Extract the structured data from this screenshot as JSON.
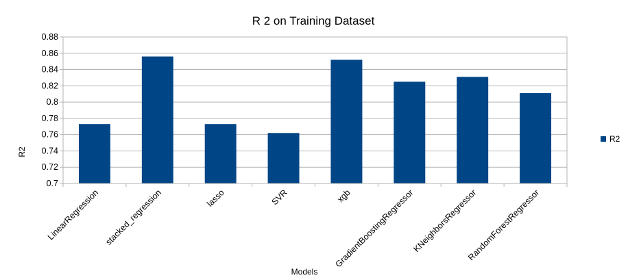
{
  "chart_data": {
    "type": "bar",
    "title": "R 2 on Training Dataset",
    "xlabel": "Models",
    "ylabel": "R2",
    "ylim": [
      0.7,
      0.88
    ],
    "ytick_step": 0.02,
    "ytick_labels": [
      "0.7",
      "0.72",
      "0.74",
      "0.76",
      "0.78",
      "0.8",
      "0.82",
      "0.84",
      "0.86",
      "0.88"
    ],
    "grid": true,
    "legend_position": "right",
    "categories": [
      "LinearRegression",
      "stacked_regression",
      "lasso",
      "SVR",
      "xgb",
      "GradientBoostingRegressor",
      "KNeighborsRegressor",
      "RandomForestRegressor"
    ],
    "series": [
      {
        "name": "R2",
        "color": "#004586",
        "values": [
          0.773,
          0.856,
          0.773,
          0.762,
          0.852,
          0.825,
          0.831,
          0.811
        ]
      }
    ]
  }
}
